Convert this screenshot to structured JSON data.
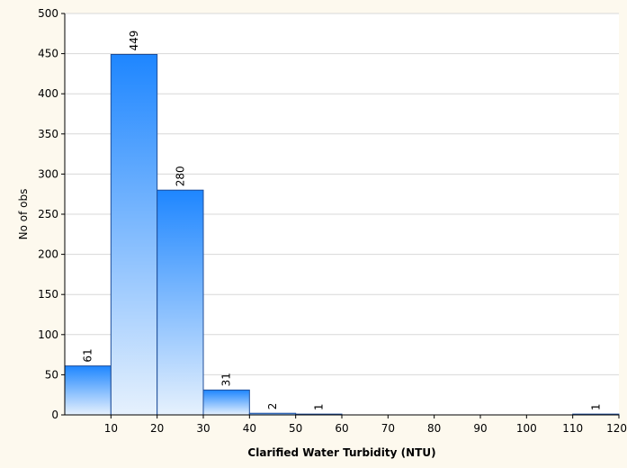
{
  "chart_data": {
    "type": "bar",
    "subtype": "histogram",
    "xlabel": "Clarified Water Turbidity (NTU)",
    "ylabel": "No of obs",
    "xlim": [
      0,
      120
    ],
    "ylim": [
      0,
      500
    ],
    "x_ticks": [
      10,
      20,
      30,
      40,
      50,
      60,
      70,
      80,
      90,
      100,
      110,
      120
    ],
    "x_tick_labels": [
      "10",
      "20",
      "30",
      "40",
      "50",
      "60",
      "70",
      "80",
      "90",
      "100",
      "110",
      "120"
    ],
    "y_ticks": [
      0,
      50,
      100,
      150,
      200,
      250,
      300,
      350,
      400,
      450,
      500
    ],
    "y_tick_labels": [
      "0",
      "50",
      "100",
      "150",
      "200",
      "250",
      "300",
      "350",
      "400",
      "450",
      "500"
    ],
    "bins": [
      {
        "start": 0,
        "end": 10,
        "count": 61,
        "label": "61"
      },
      {
        "start": 10,
        "end": 20,
        "count": 449,
        "label": "449"
      },
      {
        "start": 20,
        "end": 30,
        "count": 280,
        "label": "280"
      },
      {
        "start": 30,
        "end": 40,
        "count": 31,
        "label": "31"
      },
      {
        "start": 40,
        "end": 50,
        "count": 2,
        "label": "2"
      },
      {
        "start": 50,
        "end": 60,
        "count": 1,
        "label": "1"
      },
      {
        "start": 110,
        "end": 120,
        "count": 1,
        "label": "1"
      }
    ],
    "grid": true,
    "bar_color_top": "#1e86ff",
    "bar_color_bottom": "#e6f1fd",
    "bar_edge_color": "#1f4e9a"
  }
}
